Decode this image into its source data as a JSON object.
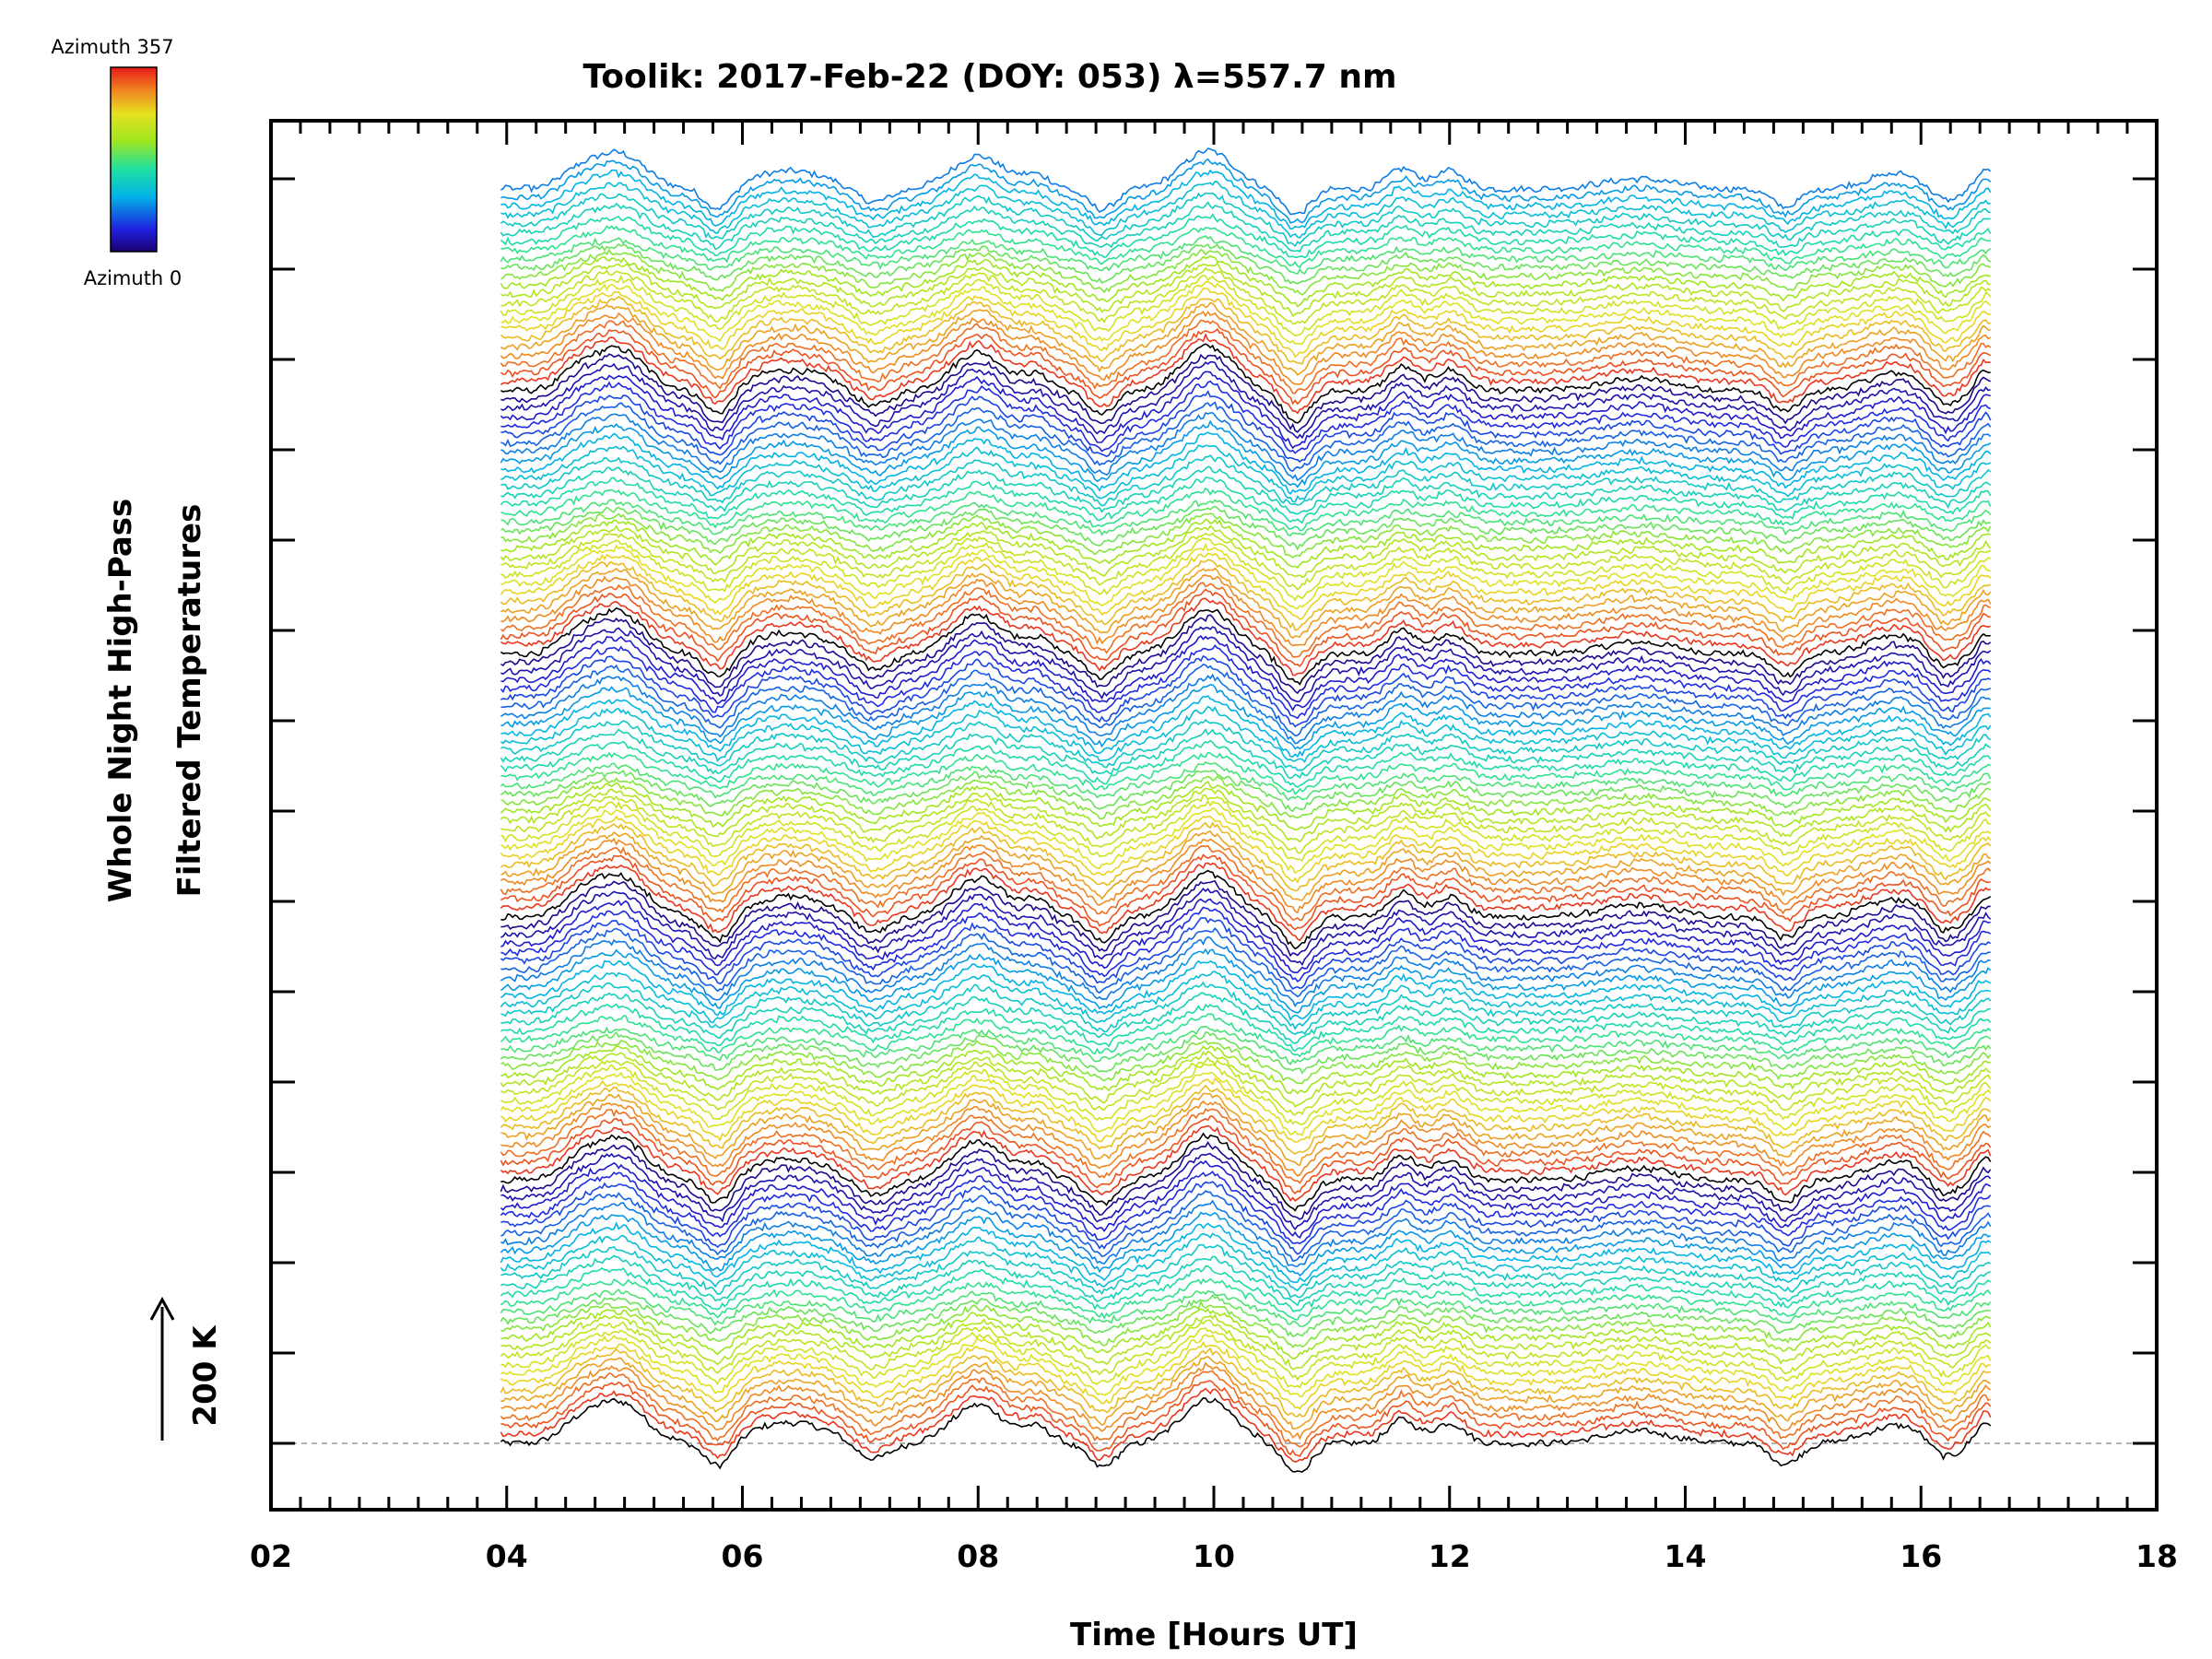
{
  "chart_data": {
    "type": "line",
    "title": "Toolik: 2017-Feb-22 (DOY: 053) λ=557.7 nm",
    "xlabel": "Time [Hours UT]",
    "ylabel_lines": [
      "Whole Night High-Pass",
      "Filtered Temperatures"
    ],
    "xlim": [
      2,
      18
    ],
    "x_ticks": [
      "02",
      "04",
      "06",
      "08",
      "10",
      "12",
      "14",
      "16",
      "18"
    ],
    "x_tick_values": [
      2,
      4,
      6,
      8,
      10,
      12,
      14,
      16,
      18
    ],
    "data_time_range": [
      3.95,
      16.6
    ],
    "scale_bar": {
      "label": "200 K",
      "value_k": 200
    },
    "colorbar": {
      "top_label": "Azimuth 357",
      "bottom_label": "Azimuth 0",
      "min": 0,
      "max": 357
    },
    "stacked_series_count": 144,
    "azimuth_cycle_length": 30,
    "note": "Stacked high-pass filtered temperature traces, one per azimuth, offset vertically; color encodes azimuth",
    "feature_peaks_hours": [
      4.95,
      6.4,
      8.0,
      9.95,
      11.6,
      12.0,
      15.8,
      16.6
    ],
    "feature_dips_hours": [
      5.8,
      7.1,
      9.05,
      10.7,
      14.85,
      16.2
    ]
  }
}
